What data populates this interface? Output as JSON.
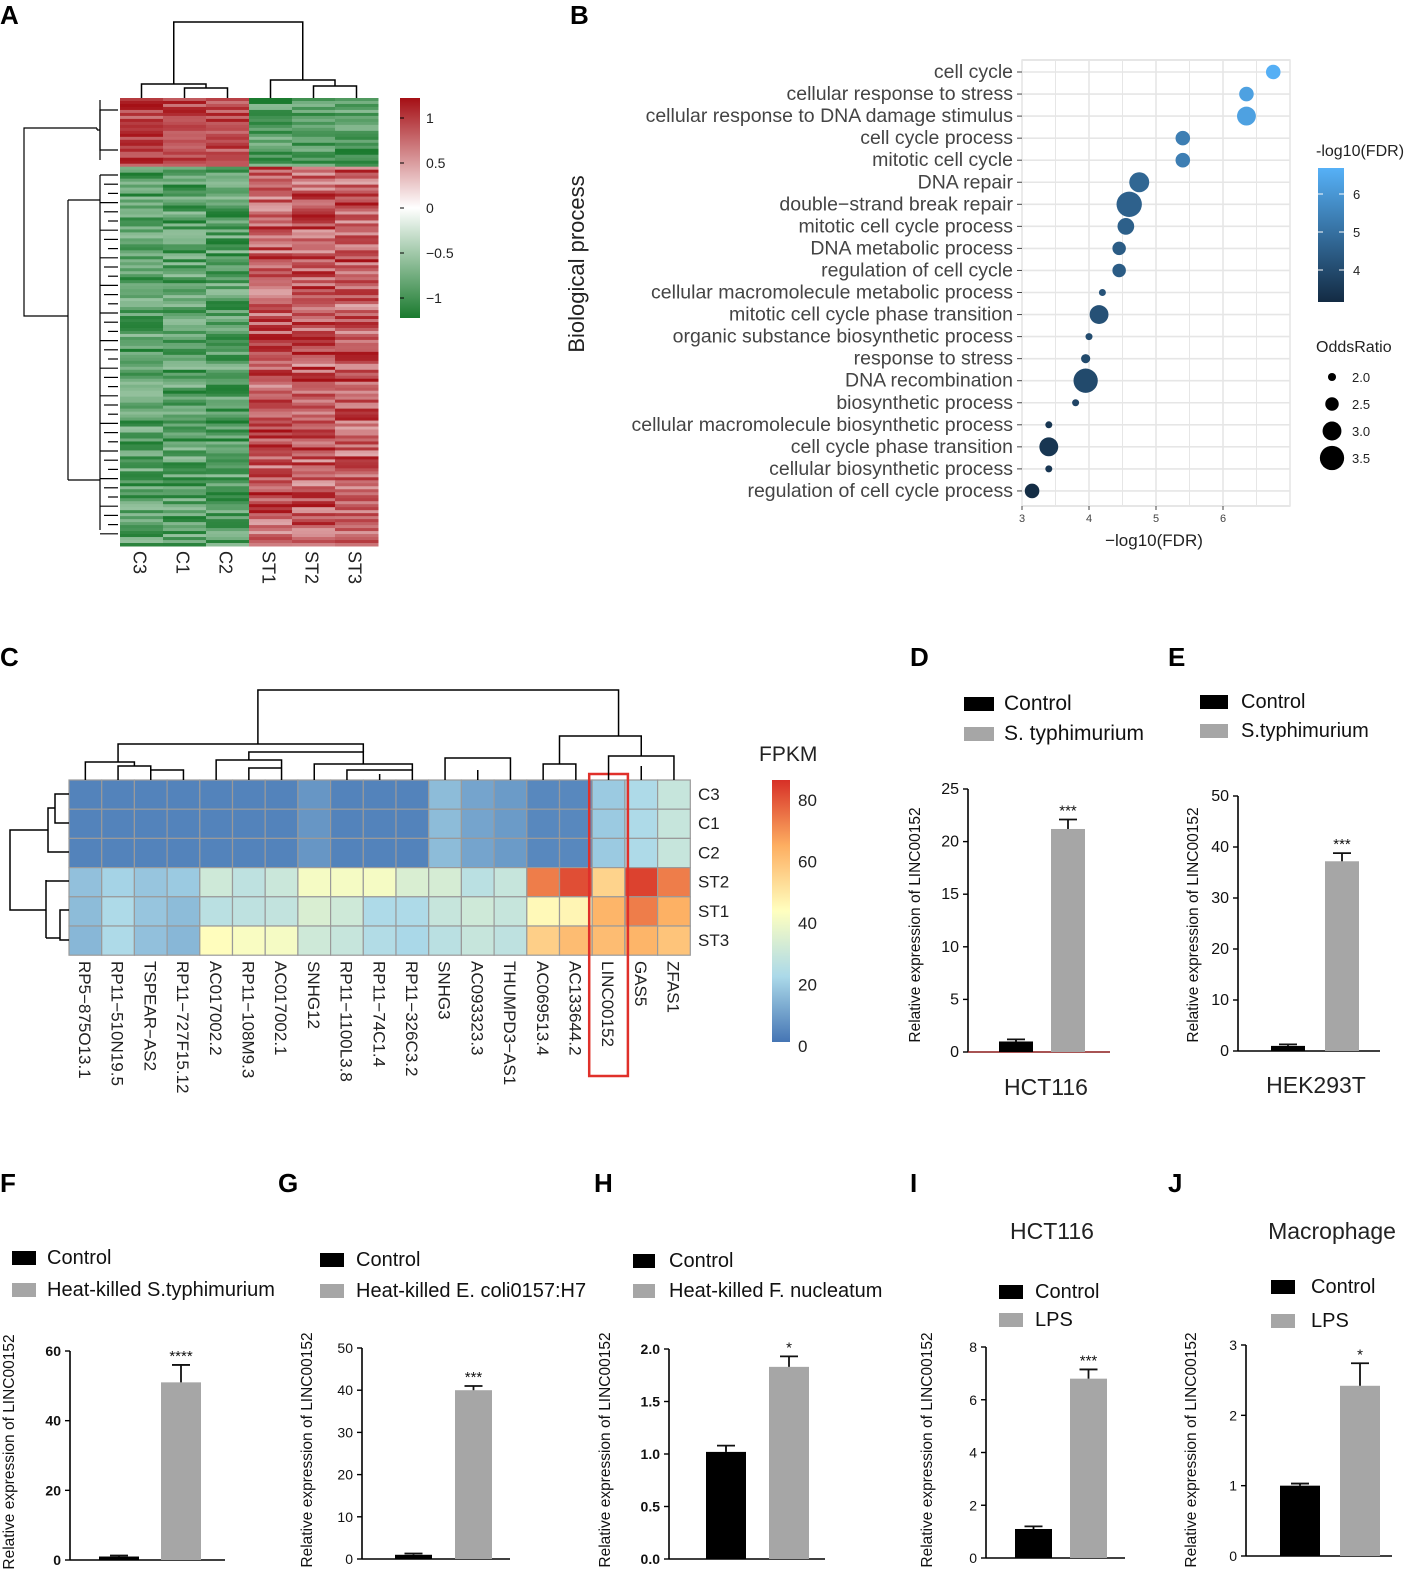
{
  "panels": {
    "A": "A",
    "B": "B",
    "C": "C",
    "D": "D",
    "E": "E",
    "F": "F",
    "G": "G",
    "H": "H",
    "I": "I",
    "J": "J"
  },
  "chart_data": [
    {
      "panel": "A",
      "type": "heatmap",
      "title": "",
      "columns": [
        "C3",
        "C1",
        "C2",
        "ST1",
        "ST2",
        "ST3"
      ],
      "legend_ticks": [
        1,
        0.5,
        0,
        -0.5,
        -1
      ],
      "legend_tick_labels": [
        "1",
        "0.5",
        "0",
        "−0.5",
        "−1"
      ],
      "color_low": "#1a7a2e",
      "color_mid": "#ffffff",
      "color_high": "#a50f15"
    },
    {
      "panel": "B",
      "type": "scatter",
      "ylabel": "Biological process",
      "xlabel": "−log10(FDR)",
      "xlim": [
        3,
        7
      ],
      "xticks": [
        3,
        4,
        5,
        6
      ],
      "terms": [
        {
          "term": "cell cycle",
          "x": 6.75,
          "odds": 2.6
        },
        {
          "term": "cellular response to stress",
          "x": 6.35,
          "odds": 2.6
        },
        {
          "term": "cellular response to DNA damage stimulus",
          "x": 6.35,
          "odds": 3.0
        },
        {
          "term": "cell cycle process",
          "x": 5.4,
          "odds": 2.6
        },
        {
          "term": "mitotic cell cycle",
          "x": 5.4,
          "odds": 2.6
        },
        {
          "term": "DNA repair",
          "x": 4.75,
          "odds": 3.1
        },
        {
          "term": "double−strand break repair",
          "x": 4.6,
          "odds": 3.6
        },
        {
          "term": "mitotic cell cycle process",
          "x": 4.55,
          "odds": 2.8
        },
        {
          "term": "DNA metabolic process",
          "x": 4.45,
          "odds": 2.5
        },
        {
          "term": "regulation of cell cycle",
          "x": 4.45,
          "odds": 2.5
        },
        {
          "term": "cellular macromolecule metabolic process",
          "x": 4.2,
          "odds": 1.9
        },
        {
          "term": "mitotic cell cycle phase transition",
          "x": 4.15,
          "odds": 3.0
        },
        {
          "term": "organic substance biosynthetic process",
          "x": 4.0,
          "odds": 1.9
        },
        {
          "term": "response to stress",
          "x": 3.95,
          "odds": 2.1
        },
        {
          "term": "DNA recombination",
          "x": 3.95,
          "odds": 3.5
        },
        {
          "term": "biosynthetic process",
          "x": 3.8,
          "odds": 1.9
        },
        {
          "term": "cellular macromolecule biosynthetic process",
          "x": 3.4,
          "odds": 1.9
        },
        {
          "term": "cell cycle phase transition",
          "x": 3.4,
          "odds": 3.0
        },
        {
          "term": "cellular biosynthetic process",
          "x": 3.4,
          "odds": 1.9
        },
        {
          "term": "regulation of cell cycle process",
          "x": 3.15,
          "odds": 2.6
        }
      ],
      "color_legend_title": "-log10(FDR)",
      "color_legend_ticks": [
        "6",
        "5",
        "4"
      ],
      "size_legend_title": "OddsRatio",
      "size_legend_values": [
        2.0,
        2.5,
        3.0,
        3.5
      ],
      "size_legend_labels": [
        "2.0",
        "2.5",
        "3.0",
        "3.5"
      ],
      "color_low": "#132b43",
      "color_high": "#56b1f7"
    },
    {
      "panel": "C",
      "type": "heatmap",
      "title": "FPKM",
      "rows": [
        "C3",
        "C1",
        "C2",
        "ST2",
        "ST1",
        "ST3"
      ],
      "columns": [
        "RP5−875O13.1",
        "RP11−510N19.5",
        "TSPEAR−AS2",
        "RP11−727F15.12",
        "AC017002.2",
        "RP11−108M9.3",
        "AC017002.1",
        "SNHG12",
        "RP11−1100L3.8",
        "RP11−74C1.4",
        "RP11−326C3.2",
        "SNHG3",
        "AC093323.3",
        "THUMPD3−AS1",
        "AC069513.4",
        "AC133644.2",
        "LINC00152",
        "GAS5",
        "ZFAS1"
      ],
      "values": [
        [
          3,
          3,
          3,
          3,
          3,
          3,
          3,
          7,
          3,
          3,
          3,
          15,
          10,
          8,
          4,
          4,
          18,
          22,
          28
        ],
        [
          3,
          3,
          3,
          3,
          3,
          3,
          3,
          7,
          3,
          3,
          3,
          15,
          10,
          8,
          4,
          4,
          18,
          22,
          28
        ],
        [
          3,
          3,
          3,
          3,
          3,
          3,
          3,
          7,
          3,
          3,
          3,
          15,
          10,
          8,
          4,
          4,
          18,
          22,
          28
        ],
        [
          16,
          20,
          17,
          18,
          30,
          26,
          29,
          40,
          40,
          40,
          33,
          32,
          25,
          28,
          72,
          80,
          54,
          82,
          72
        ],
        [
          15,
          22,
          17,
          15,
          25,
          26,
          27,
          33,
          30,
          22,
          22,
          28,
          30,
          28,
          44,
          45,
          62,
          72,
          63
        ],
        [
          14,
          22,
          16,
          14,
          43,
          41,
          40,
          30,
          28,
          23,
          21,
          25,
          28,
          26,
          55,
          60,
          60,
          62,
          58
        ]
      ],
      "highlight": "LINC00152",
      "legend_ticks": [
        "80",
        "60",
        "40",
        "20",
        "0"
      ],
      "vmin": 0,
      "vmax": 85
    },
    {
      "panel": "D",
      "type": "bar",
      "categories": [
        "Control",
        "S. typhimurium"
      ],
      "values": [
        1.0,
        21.2
      ],
      "errors": [
        0.2,
        0.9
      ],
      "ylim": [
        0,
        25
      ],
      "yticks": [
        "0",
        "5",
        "10",
        "15",
        "20",
        "25"
      ],
      "ylabel": "Relative expression of LINC00152",
      "xlabel": "HCT116",
      "significance": "***",
      "legend": [
        "Control",
        "S. typhimurium"
      ]
    },
    {
      "panel": "E",
      "type": "bar",
      "categories": [
        "Control",
        "S.typhimurium"
      ],
      "values": [
        1.0,
        37.2
      ],
      "errors": [
        0.3,
        1.6
      ],
      "ylim": [
        0,
        50
      ],
      "yticks": [
        "0",
        "10",
        "20",
        "30",
        "40",
        "50"
      ],
      "ylabel": "Relative expression of LINC00152",
      "xlabel": "HEK293T",
      "significance": "***",
      "legend": [
        "Control",
        "S.typhimurium"
      ]
    },
    {
      "panel": "F",
      "type": "bar",
      "categories": [
        "Control",
        "Heat-killed S.typhimurium"
      ],
      "values": [
        1.0,
        51.0
      ],
      "errors": [
        0.3,
        5.0
      ],
      "ylim": [
        0,
        60
      ],
      "yticks": [
        "0",
        "20",
        "40",
        "60"
      ],
      "ylabel": "Relative expression of LINC00152",
      "significance": "****",
      "legend": [
        "Control",
        "Heat-killed S.typhimurium"
      ]
    },
    {
      "panel": "G",
      "type": "bar",
      "categories": [
        "Control",
        "Heat-killed E. coli0157:H7"
      ],
      "values": [
        1.0,
        40.0
      ],
      "errors": [
        0.3,
        1.0
      ],
      "ylim": [
        0,
        50
      ],
      "yticks": [
        "0",
        "10",
        "20",
        "30",
        "40",
        "50"
      ],
      "ylabel": "Relative expression of LINC00152",
      "significance": "***",
      "legend": [
        "Control",
        "Heat-killed E. coli0157:H7"
      ]
    },
    {
      "panel": "H",
      "type": "bar",
      "categories": [
        "Control",
        "Heat-killed  F. nucleatum"
      ],
      "values": [
        1.02,
        1.83
      ],
      "errors": [
        0.06,
        0.1
      ],
      "ylim": [
        0,
        2.0
      ],
      "yticks": [
        "0.0",
        "0.5",
        "1.0",
        "1.5",
        "2.0"
      ],
      "ylabel": "Relative expression of LINC00152",
      "significance": "*",
      "legend": [
        "Control",
        "Heat-killed  F. nucleatum"
      ]
    },
    {
      "panel": "I",
      "type": "bar",
      "title": "HCT116",
      "categories": [
        "Control",
        "LPS"
      ],
      "values": [
        1.1,
        6.8
      ],
      "errors": [
        0.1,
        0.35
      ],
      "ylim": [
        0,
        8
      ],
      "yticks": [
        "0",
        "2",
        "4",
        "6",
        "8"
      ],
      "ylabel": "Relative expression of LINC00152",
      "significance": "***",
      "legend": [
        "Control",
        "LPS"
      ]
    },
    {
      "panel": "J",
      "type": "bar",
      "title": "Macrophage",
      "categories": [
        "Control",
        "LPS"
      ],
      "values": [
        1.0,
        2.42
      ],
      "errors": [
        0.03,
        0.32
      ],
      "ylim": [
        0,
        3
      ],
      "yticks": [
        "0",
        "1",
        "2",
        "3"
      ],
      "ylabel": "Relative expression of LINC00152",
      "significance": "*",
      "legend": [
        "Control",
        "LPS"
      ]
    }
  ]
}
